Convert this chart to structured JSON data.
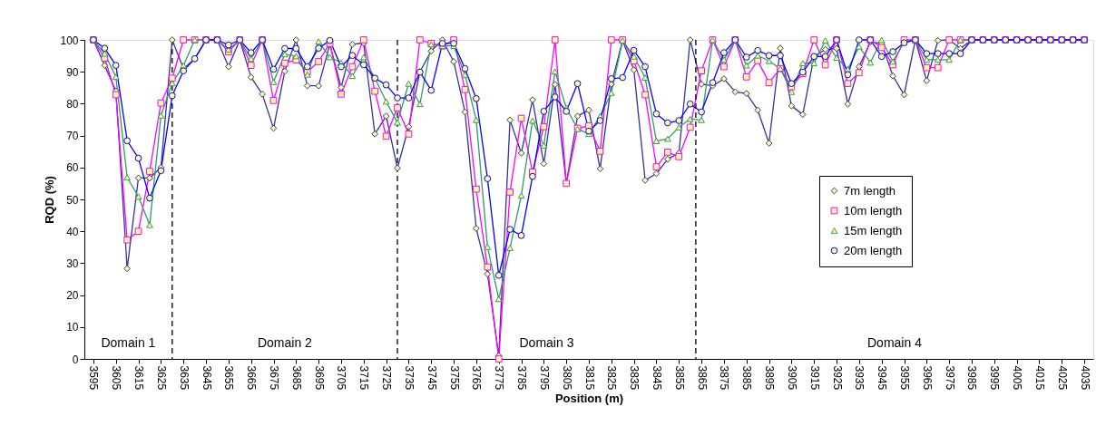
{
  "chart_data": {
    "type": "line",
    "xlabel": "Position (m)",
    "ylabel": "RQD (%)",
    "x": [
      3595,
      3600,
      3605,
      3610,
      3615,
      3620,
      3625,
      3630,
      3635,
      3640,
      3645,
      3650,
      3655,
      3660,
      3665,
      3670,
      3675,
      3680,
      3685,
      3690,
      3695,
      3700,
      3705,
      3710,
      3715,
      3720,
      3725,
      3730,
      3735,
      3740,
      3745,
      3750,
      3755,
      3760,
      3765,
      3770,
      3775,
      3780,
      3785,
      3790,
      3795,
      3800,
      3805,
      3810,
      3815,
      3820,
      3825,
      3830,
      3835,
      3840,
      3845,
      3850,
      3855,
      3860,
      3865,
      3870,
      3875,
      3880,
      3885,
      3890,
      3895,
      3900,
      3905,
      3910,
      3915,
      3920,
      3925,
      3930,
      3935,
      3940,
      3945,
      3950,
      3955,
      3960,
      3965,
      3970,
      3975,
      3980,
      3985,
      3990,
      3995,
      4000,
      4005,
      4010,
      4015,
      4020,
      4025,
      4030,
      4035
    ],
    "series": [
      {
        "name": "7m length",
        "color": "#333399",
        "marker": "diamond",
        "values": [
          100,
          92,
          84,
          28.3,
          56.7,
          56.7,
          60,
          100,
          91,
          94,
          100,
          100,
          91.6,
          100,
          88.3,
          83,
          72.3,
          90.2,
          100,
          85.6,
          85.6,
          98.6,
          85.1,
          98.6,
          99,
          70.5,
          76.1,
          59.8,
          72.8,
          90,
          96.5,
          100,
          93.2,
          77.4,
          40.9,
          26.6,
          1,
          74.9,
          64.5,
          81.2,
          61.2,
          86,
          55,
          76.1,
          78,
          59.6,
          86.1,
          99.8,
          90.6,
          56,
          58.1,
          62.6,
          64.5,
          100,
          86.1,
          85.6,
          87.8,
          83.7,
          83.2,
          78,
          67.6,
          97.4,
          79.3,
          76.6,
          94.8,
          97,
          97.3,
          79.9,
          91.6,
          99.3,
          98.9,
          88.7,
          82.8,
          100,
          87.2,
          99.8,
          100,
          97.3,
          100,
          100,
          100,
          100,
          100,
          100,
          100,
          100,
          100,
          100,
          100
        ]
      },
      {
        "name": "10m length",
        "color": "#ff00ff",
        "marker": "square",
        "values": [
          100,
          94.3,
          82.8,
          37.3,
          40,
          58.8,
          80.2,
          88,
          100,
          100,
          100,
          100,
          96.3,
          100,
          92,
          100,
          81,
          92.7,
          93.7,
          90,
          93.2,
          98.9,
          83,
          91.6,
          100,
          83.9,
          69.8,
          78.7,
          70.5,
          100,
          98.9,
          98.1,
          100,
          84.4,
          53.2,
          28.8,
          0,
          52.3,
          75.4,
          58.6,
          72.8,
          100,
          55,
          72.3,
          73,
          65.1,
          100,
          100,
          93.4,
          82.8,
          60.2,
          64.8,
          63.4,
          72.6,
          90.3,
          100,
          91.6,
          100,
          88.4,
          93.5,
          86.6,
          91,
          85.3,
          89.4,
          100,
          92.2,
          100,
          86.3,
          89.7,
          100,
          97.6,
          92.2,
          100,
          100,
          91.3,
          91.3,
          100,
          100,
          100,
          100,
          100,
          100,
          100,
          100,
          100,
          100,
          100,
          100,
          100
        ]
      },
      {
        "name": "15m length",
        "color": "#339966",
        "marker": "triangle",
        "values": [
          100,
          95.7,
          88.4,
          56.9,
          50.9,
          42,
          76.3,
          86.4,
          92,
          100,
          100,
          100,
          97,
          100,
          94.1,
          100,
          86.8,
          95.5,
          94.9,
          89.1,
          99.5,
          94.6,
          92.9,
          88.7,
          94.6,
          88,
          80.7,
          74.1,
          86.3,
          79.9,
          98.6,
          98.1,
          98.1,
          89.1,
          74.9,
          35.1,
          18.8,
          34.8,
          51.2,
          74.7,
          66.9,
          90.1,
          78.7,
          72.1,
          70.5,
          76.1,
          83.4,
          99.8,
          94.8,
          88.2,
          68.3,
          69,
          72.6,
          75.2,
          74.9,
          100,
          93.8,
          100,
          92,
          95.1,
          93.4,
          91,
          83.7,
          92.7,
          92.7,
          99.8,
          94.4,
          90.8,
          97.9,
          92.9,
          100,
          93.2,
          99.3,
          100,
          93.8,
          93.8,
          93.8,
          100,
          100,
          100,
          100,
          100,
          100,
          100,
          100,
          100,
          100,
          100,
          100
        ]
      },
      {
        "name": "20m length",
        "color": "#0000ff",
        "marker": "circle",
        "values": [
          100,
          97.4,
          92,
          68.4,
          62.9,
          50.4,
          59,
          82.5,
          90.3,
          94.1,
          100,
          100,
          98.4,
          100,
          96,
          100,
          90.8,
          97.3,
          97.3,
          91.6,
          97.4,
          99.8,
          91.6,
          95.1,
          92.2,
          88,
          85.9,
          81.8,
          81.8,
          89.9,
          84.2,
          98.9,
          98.9,
          91,
          81.6,
          56.5,
          26.2,
          40.6,
          38.7,
          57.2,
          77.6,
          82.1,
          77.6,
          86.3,
          71.4,
          74.7,
          87.8,
          88.2,
          96.7,
          91.6,
          76.8,
          74,
          74.7,
          79.9,
          77.4,
          86.6,
          96,
          100,
          94.6,
          96.7,
          95.1,
          95.1,
          86.3,
          89.9,
          94.8,
          94.8,
          100,
          89.1,
          100,
          100,
          94.8,
          96.3,
          99.1,
          100,
          95.7,
          95.7,
          95.7,
          95.7,
          100,
          100,
          100,
          100,
          100,
          100,
          100,
          100,
          100,
          100,
          100
        ]
      }
    ],
    "xlim": [
      3591,
      4039
    ],
    "xticks": [
      3595,
      3605,
      3615,
      3625,
      3635,
      3645,
      3655,
      3665,
      3675,
      3685,
      3695,
      3705,
      3715,
      3725,
      3735,
      3745,
      3755,
      3765,
      3775,
      3785,
      3795,
      3805,
      3815,
      3825,
      3835,
      3845,
      3855,
      3865,
      3875,
      3885,
      3895,
      3905,
      3915,
      3925,
      3935,
      3945,
      3955,
      3965,
      3975,
      3985,
      3995,
      4005,
      4015,
      4025,
      4035
    ],
    "ylim": [
      0,
      100
    ],
    "yticks": [
      0,
      10,
      20,
      30,
      40,
      50,
      60,
      70,
      80,
      90,
      100
    ],
    "grid": false,
    "legend": "right",
    "line_style": "solid",
    "ref_lines": [
      {
        "axis": "x",
        "value": 3630,
        "color": "#000000",
        "line_style": "dashed"
      },
      {
        "axis": "x",
        "value": 3730,
        "color": "#000000",
        "line_style": "dashed"
      },
      {
        "axis": "x",
        "value": 3862.5,
        "color": "#000000",
        "line_style": "dashed"
      }
    ],
    "annotations": [
      "Domain 1",
      "Domain 2",
      "Domain 3",
      "Domain 4"
    ]
  }
}
